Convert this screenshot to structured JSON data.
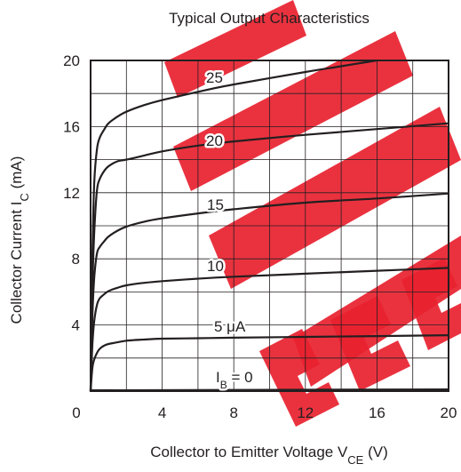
{
  "chart_data": {
    "type": "line",
    "title": "Typical Output Characteristics",
    "xlabel": {
      "main": "Collector to Emitter Voltage  V",
      "sub": "CE",
      "unit": "  (V)"
    },
    "ylabel": {
      "main": "Collector Current  I",
      "sub": "C",
      "unit": "  (mA)"
    },
    "xlim": [
      0,
      20
    ],
    "ylim": [
      0,
      20
    ],
    "x_ticks": [
      0,
      4,
      8,
      12,
      16,
      20
    ],
    "y_ticks": [
      4,
      8,
      12,
      16,
      20
    ],
    "grid": true,
    "watermark": "Not recommended for new design",
    "watermark_color": "#e8212f",
    "line_color": "#231f20",
    "series": [
      {
        "label_parts": {
          "main": "I",
          "sub": "B",
          "rest": " = 0"
        },
        "x": [
          0,
          20
        ],
        "y": [
          0.05,
          0.1
        ]
      },
      {
        "label_parts": {
          "main": "5 μA",
          "sub": "",
          "rest": ""
        },
        "x": [
          0,
          0.1,
          0.2,
          0.35,
          0.5,
          0.75,
          1,
          1.5,
          2,
          3,
          4,
          6,
          8,
          12,
          16,
          20
        ],
        "y": [
          0,
          1.4,
          1.9,
          2.3,
          2.55,
          2.75,
          2.85,
          2.95,
          3.05,
          3.12,
          3.17,
          3.2,
          3.23,
          3.28,
          3.33,
          3.38
        ]
      },
      {
        "label_parts": {
          "main": "10",
          "sub": "",
          "rest": ""
        },
        "x": [
          0,
          0.1,
          0.2,
          0.35,
          0.5,
          0.75,
          1,
          1.5,
          2,
          3,
          4,
          6,
          8,
          12,
          16,
          20
        ],
        "y": [
          0,
          2.8,
          4.2,
          5.2,
          5.6,
          5.85,
          6.05,
          6.25,
          6.4,
          6.55,
          6.65,
          6.8,
          6.92,
          7.1,
          7.28,
          7.45
        ]
      },
      {
        "label_parts": {
          "main": "15",
          "sub": "",
          "rest": ""
        },
        "x": [
          0,
          0.1,
          0.2,
          0.35,
          0.5,
          0.75,
          1,
          1.5,
          2,
          3,
          4,
          6,
          8,
          12,
          16,
          20
        ],
        "y": [
          0,
          4.5,
          6.8,
          8.3,
          8.7,
          9.05,
          9.35,
          9.7,
          9.95,
          10.25,
          10.45,
          10.75,
          11.0,
          11.4,
          11.65,
          11.95
        ]
      },
      {
        "label_parts": {
          "main": "20",
          "sub": "",
          "rest": ""
        },
        "x": [
          0,
          0.1,
          0.2,
          0.35,
          0.5,
          0.75,
          1,
          1.5,
          2,
          3,
          4,
          6,
          8,
          12,
          16,
          20
        ],
        "y": [
          0,
          6.2,
          9.5,
          12.1,
          12.8,
          13.3,
          13.6,
          13.9,
          14.0,
          14.25,
          14.5,
          14.85,
          15.1,
          15.5,
          15.85,
          16.2
        ]
      },
      {
        "label_parts": {
          "main": "25",
          "sub": "",
          "rest": ""
        },
        "x": [
          0,
          0.1,
          0.2,
          0.35,
          0.5,
          0.75,
          1,
          1.5,
          2,
          3,
          4,
          6,
          8,
          12,
          14,
          16
        ],
        "y": [
          0,
          8.0,
          12.5,
          14.6,
          15.3,
          15.8,
          16.2,
          16.6,
          16.9,
          17.3,
          17.6,
          18.1,
          18.55,
          19.3,
          19.65,
          20.0
        ]
      }
    ]
  }
}
